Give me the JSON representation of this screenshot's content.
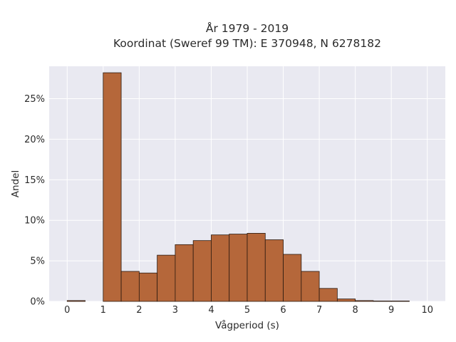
{
  "chart_data": {
    "type": "bar",
    "title_line1": "År 1979 - 2019",
    "title_line2": "Koordinat (Sweref 99 TM): E 370948, N 6278182",
    "xlabel": "Vågperiod (s)",
    "ylabel": "Andel",
    "xlim": [
      -0.5,
      10.5
    ],
    "ylim": [
      0,
      0.29
    ],
    "x_ticks": [
      0,
      1,
      2,
      3,
      4,
      5,
      6,
      7,
      8,
      9,
      10
    ],
    "x_tick_labels": [
      "0",
      "1",
      "2",
      "3",
      "4",
      "5",
      "6",
      "7",
      "8",
      "9",
      "10"
    ],
    "y_ticks": [
      0,
      0.05,
      0.1,
      0.15,
      0.2,
      0.25
    ],
    "y_tick_labels": [
      "0%",
      "5%",
      "10%",
      "15%",
      "20%",
      "25%"
    ],
    "bin_width": 0.5,
    "bin_starts": [
      0,
      0.5,
      1,
      1.5,
      2,
      2.5,
      3,
      3.5,
      4,
      4.5,
      5,
      5.5,
      6,
      6.5,
      7,
      7.5,
      8,
      8.5,
      9,
      9.5
    ],
    "values": [
      0.001,
      0,
      0.282,
      0.037,
      0.035,
      0.057,
      0.07,
      0.075,
      0.082,
      0.083,
      0.084,
      0.076,
      0.058,
      0.037,
      0.016,
      0.003,
      0.001,
      0.0005,
      0.0005,
      0
    ],
    "grid": true,
    "bar_color": "#b5673a",
    "bar_edge_color": "#2b1a10",
    "plot_background": "#e9e9f1",
    "grid_color": "#ffffff"
  }
}
